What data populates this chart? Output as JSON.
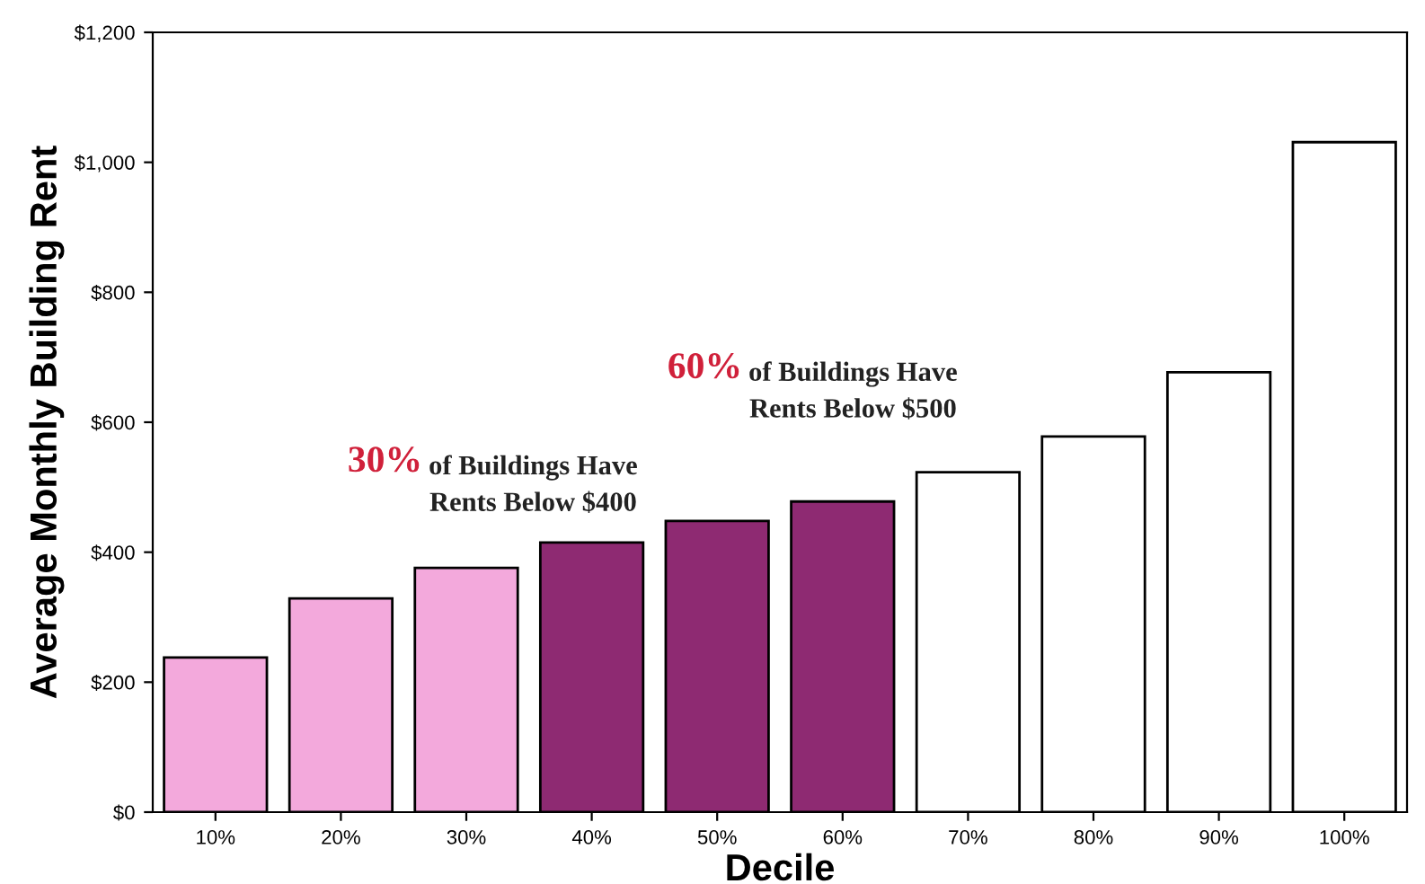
{
  "chart_data": {
    "type": "bar",
    "xlabel": "Decile",
    "ylabel": "Average Monthly Building Rent",
    "categories": [
      "10%",
      "20%",
      "30%",
      "40%",
      "50%",
      "60%",
      "70%",
      "80%",
      "90%",
      "100%"
    ],
    "values": [
      238,
      329,
      376,
      415,
      448,
      478,
      523,
      578,
      677,
      1031
    ],
    "colors": [
      "#f3a9dc",
      "#f3a9dc",
      "#f3a9dc",
      "#8e2a72",
      "#8e2a72",
      "#8e2a72",
      "#ffffff",
      "#ffffff",
      "#ffffff",
      "#ffffff"
    ],
    "ylim": [
      0,
      1200
    ],
    "yticks": [
      {
        "value": 0,
        "label": "$0"
      },
      {
        "value": 200,
        "label": "$200"
      },
      {
        "value": 400,
        "label": "$400"
      },
      {
        "value": 600,
        "label": "$600"
      },
      {
        "value": 800,
        "label": "$800"
      },
      {
        "value": 1000,
        "label": "$1,000"
      },
      {
        "value": 1200,
        "label": "$1,200"
      }
    ],
    "annotations": [
      "30%",
      "of Buildings Have\nRents Below $400",
      "60%",
      "of Buildings Have\nRents Below $500"
    ],
    "grid": false
  }
}
